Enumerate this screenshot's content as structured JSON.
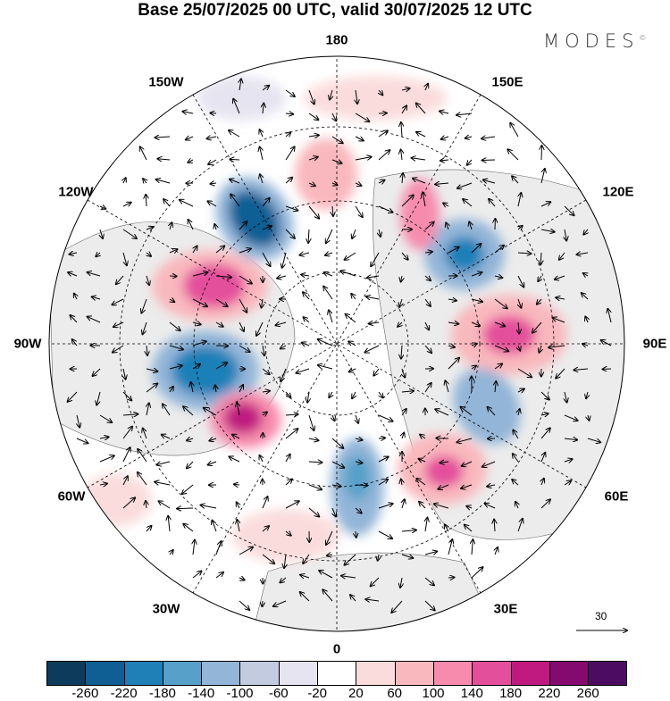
{
  "title": "Base 25/07/2025 00 UTC, valid 30/07/2025 12 UTC",
  "logo": {
    "text": "MODES",
    "mark": "©"
  },
  "longitude_labels": {
    "n180": "180",
    "w150": "150W",
    "e150": "150E",
    "w120": "120W",
    "e120": "120E",
    "w90": "90W",
    "e90": "90E",
    "w60": "60W",
    "e60": "60E",
    "w30": "30W",
    "e30": "30E",
    "s0": "0"
  },
  "reference_vector": {
    "label": "30"
  },
  "colorbar": {
    "colors": [
      "#0d3b5c",
      "#0f5f94",
      "#1f80b8",
      "#56a0c9",
      "#93b5d8",
      "#c3cbe0",
      "#e6e4f0",
      "#ffffff",
      "#fbdcdc",
      "#f9b8bd",
      "#f78bad",
      "#e44f9c",
      "#c01a80",
      "#850a70",
      "#4c0c62"
    ],
    "labels": [
      "-260",
      "-220",
      "-180",
      "-140",
      "-100",
      "-60",
      "-20",
      "20",
      "60",
      "100",
      "140",
      "180",
      "220",
      "260"
    ]
  }
}
